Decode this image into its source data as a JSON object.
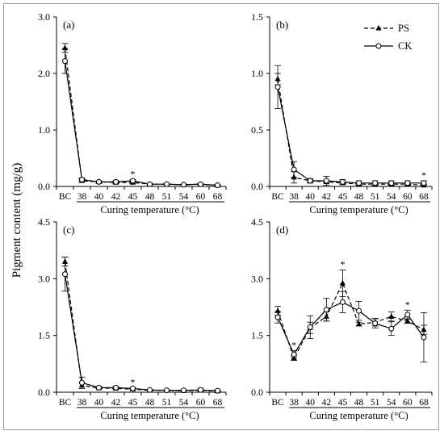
{
  "figure": {
    "ylabel": "Pigment content (mg/g)",
    "legend": [
      {
        "name": "PS",
        "style": "dashed",
        "marker": "triangle"
      },
      {
        "name": "CK",
        "style": "solid",
        "marker": "circle"
      }
    ],
    "legend_location": "top-right of panel (b)",
    "colors": {
      "line": "#000000",
      "frame": "#9a9a9a",
      "marker_fill_ck": "#ffffff"
    }
  },
  "chart_data": [
    {
      "type": "line",
      "panel_label": "(a)",
      "xlabel": "Curing temperature (°C)",
      "ylabel": "Pigment content (mg/g)",
      "categories": [
        "BC",
        "38",
        "40",
        "42",
        "45",
        "48",
        "51",
        "54",
        "60",
        "68"
      ],
      "yticks": [
        "0.0",
        "1.0",
        "2.0",
        "3.0"
      ],
      "ylim": [
        0,
        3
      ],
      "series": [
        {
          "name": "PS",
          "values": [
            2.45,
            0.1,
            0.08,
            0.07,
            0.07,
            0.04,
            0.04,
            0.03,
            0.04,
            0.02
          ],
          "errors": [
            0.08,
            0.03,
            0.02,
            0.02,
            0.02,
            0.01,
            0.01,
            0.01,
            0.01,
            0.01
          ]
        },
        {
          "name": "CK",
          "values": [
            2.22,
            0.12,
            0.08,
            0.08,
            0.1,
            0.04,
            0.04,
            0.03,
            0.04,
            0.02
          ],
          "errors": [
            0.22,
            0.03,
            0.02,
            0.02,
            0.02,
            0.01,
            0.01,
            0.01,
            0.01,
            0.01
          ]
        }
      ],
      "significance": [
        {
          "category": "45",
          "mark": "*"
        }
      ],
      "grid": false
    },
    {
      "type": "line",
      "panel_label": "(b)",
      "xlabel": "Curing temperature (°C)",
      "ylabel": "Pigment content (mg/g)",
      "categories": [
        "BC",
        "38",
        "40",
        "42",
        "45",
        "48",
        "51",
        "54",
        "60",
        "68"
      ],
      "yticks": [
        "0.0",
        "0.5",
        "1.0",
        "1.5"
      ],
      "ylim": [
        0,
        1.5
      ],
      "series": [
        {
          "name": "PS",
          "values": [
            0.95,
            0.08,
            0.05,
            0.04,
            0.03,
            0.02,
            0.02,
            0.02,
            0.02,
            0.01
          ],
          "errors": [
            0.05,
            0.05,
            0.01,
            0.01,
            0.01,
            0.01,
            0.01,
            0.01,
            0.01,
            0.01
          ]
        },
        {
          "name": "CK",
          "values": [
            0.88,
            0.15,
            0.05,
            0.05,
            0.04,
            0.03,
            0.03,
            0.03,
            0.03,
            0.03
          ],
          "errors": [
            0.19,
            0.07,
            0.02,
            0.04,
            0.02,
            0.02,
            0.02,
            0.02,
            0.02,
            0.02
          ]
        }
      ],
      "significance": [
        {
          "category": "68",
          "mark": "*"
        }
      ],
      "grid": false
    },
    {
      "type": "line",
      "panel_label": "(c)",
      "xlabel": "Curing temperature (°C)",
      "ylabel": "Pigment content (mg/g)",
      "categories": [
        "BC",
        "38",
        "40",
        "42",
        "45",
        "48",
        "51",
        "54",
        "60",
        "68"
      ],
      "yticks": [
        "0.0",
        "1.5",
        "3.0",
        "4.5"
      ],
      "ylim": [
        0,
        4.5
      ],
      "series": [
        {
          "name": "PS",
          "values": [
            3.45,
            0.18,
            0.11,
            0.1,
            0.08,
            0.05,
            0.05,
            0.04,
            0.05,
            0.03
          ],
          "errors": [
            0.12,
            0.08,
            0.02,
            0.02,
            0.02,
            0.01,
            0.01,
            0.01,
            0.01,
            0.01
          ]
        },
        {
          "name": "CK",
          "values": [
            3.12,
            0.25,
            0.12,
            0.12,
            0.1,
            0.06,
            0.05,
            0.05,
            0.06,
            0.04
          ],
          "errors": [
            0.45,
            0.15,
            0.03,
            0.03,
            0.02,
            0.01,
            0.01,
            0.01,
            0.05,
            0.02
          ]
        }
      ],
      "significance": [
        {
          "category": "45",
          "mark": "*"
        }
      ],
      "grid": false
    },
    {
      "type": "line",
      "panel_label": "(d)",
      "xlabel": "Curing temperature (°C)",
      "ylabel": "Pigment content (mg/g)",
      "categories": [
        "BC",
        "38",
        "40",
        "42",
        "45",
        "48",
        "51",
        "54",
        "60",
        "68"
      ],
      "yticks": [
        "0.0",
        "1.5",
        "3.0",
        "4.5"
      ],
      "ylim": [
        0,
        4.5
      ],
      "series": [
        {
          "name": "PS",
          "values": [
            2.15,
            0.9,
            1.7,
            2.0,
            2.88,
            1.8,
            1.85,
            2.0,
            1.88,
            1.65
          ],
          "errors": [
            0.12,
            0.06,
            0.15,
            0.12,
            0.35,
            0.05,
            0.1,
            0.12,
            0.06,
            0.12
          ]
        },
        {
          "name": "CK",
          "values": [
            1.98,
            1.0,
            1.72,
            2.18,
            2.38,
            2.15,
            1.82,
            1.68,
            2.05,
            1.45
          ],
          "errors": [
            0.15,
            0.1,
            0.3,
            0.3,
            0.28,
            0.25,
            0.12,
            0.18,
            0.12,
            0.65
          ]
        }
      ],
      "significance": [
        {
          "category": "38",
          "mark": "*"
        },
        {
          "category": "45",
          "mark": "*"
        },
        {
          "category": "60",
          "mark": "*"
        }
      ],
      "grid": false
    }
  ]
}
